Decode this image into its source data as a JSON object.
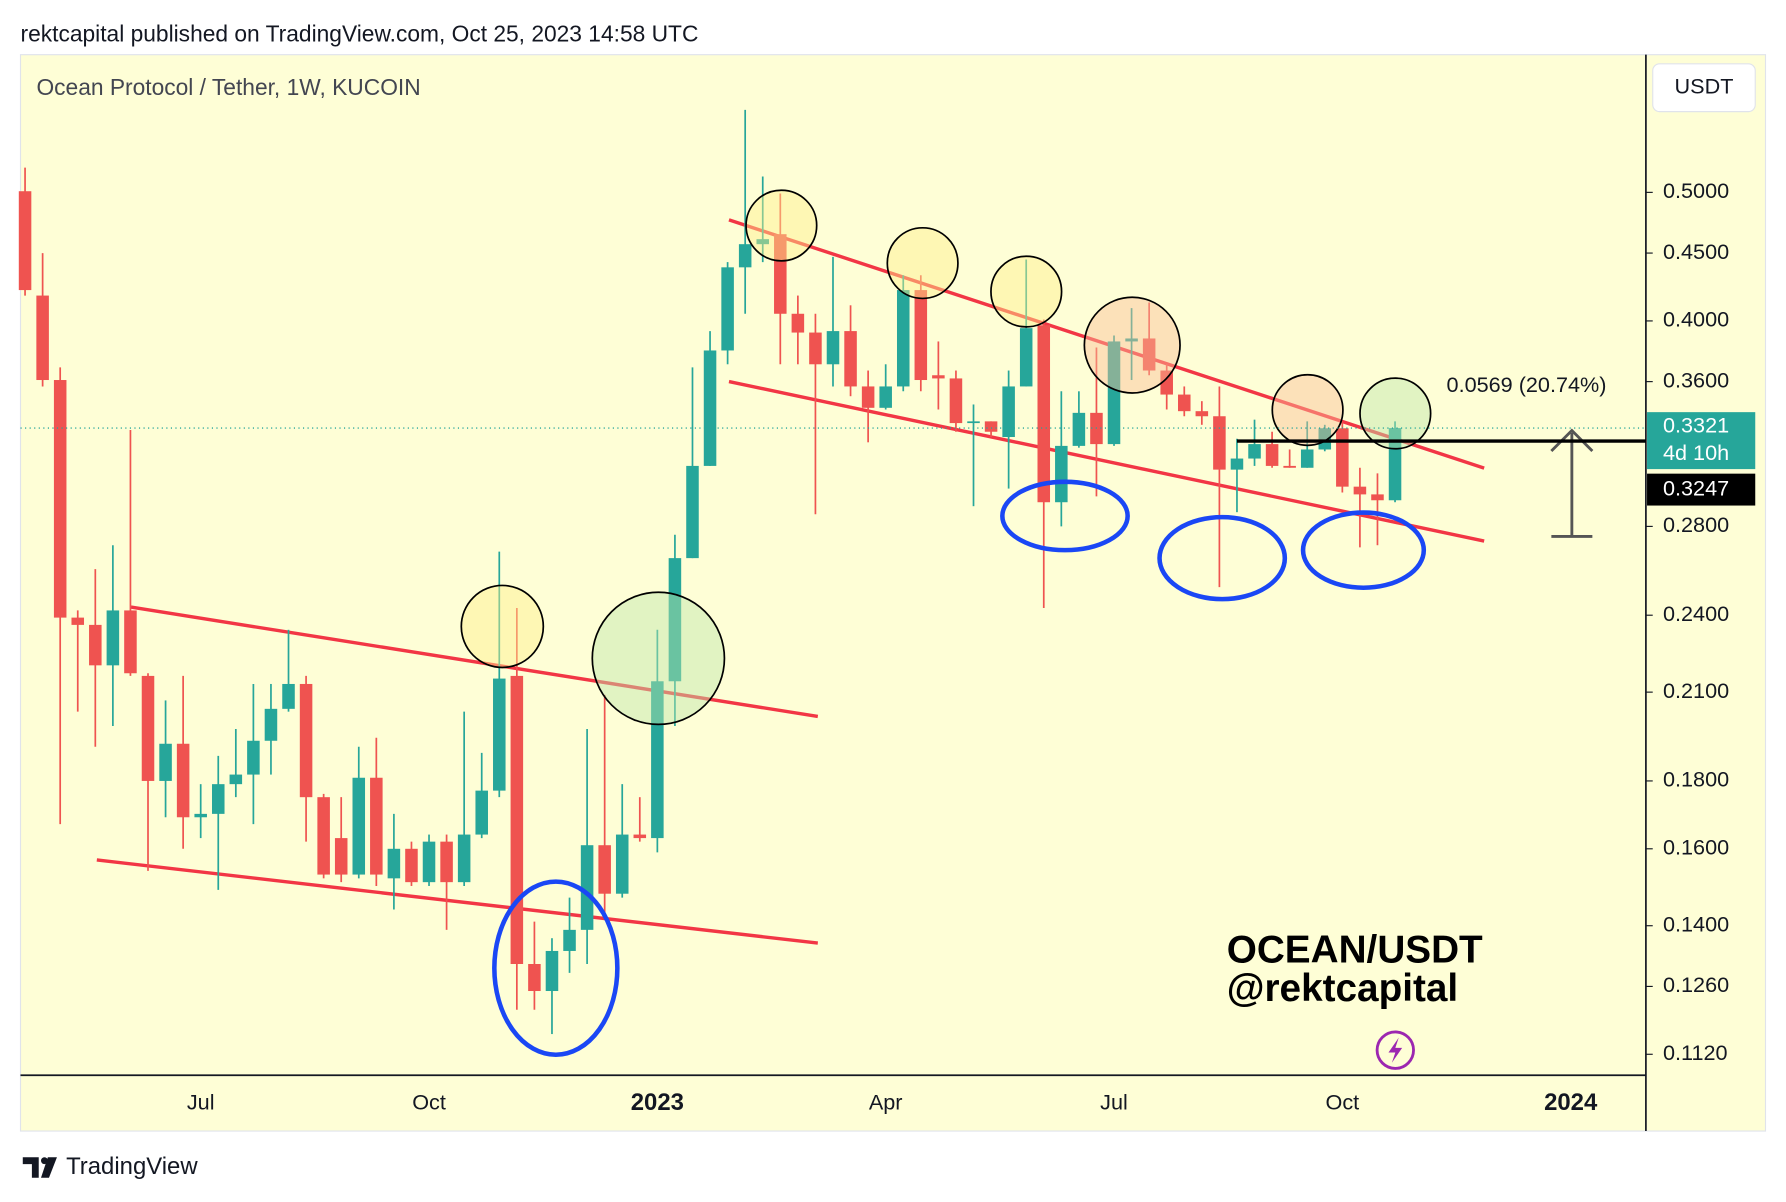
{
  "header": "rektcapital published on TradingView.com, Oct 25, 2023 14:58 UTC",
  "footer": "TradingView",
  "chart_data": {
    "type": "candlestick",
    "title": "Ocean Protocol / Tether, 1W, KUCOIN",
    "currency": "USDT",
    "log_scale": true,
    "grid": false,
    "up_color": "#26a69a",
    "down_color": "#ef5350",
    "ylim": [
      0.108,
      0.635
    ],
    "yticks": [
      {
        "value": 0.5,
        "label": "0.5000"
      },
      {
        "value": 0.45,
        "label": "0.4500"
      },
      {
        "value": 0.4,
        "label": "0.4000"
      },
      {
        "value": 0.36,
        "label": "0.3600"
      },
      {
        "value": 0.28,
        "label": "0.2800"
      },
      {
        "value": 0.24,
        "label": "0.2400"
      },
      {
        "value": 0.21,
        "label": "0.2100"
      },
      {
        "value": 0.18,
        "label": "0.1800"
      },
      {
        "value": 0.16,
        "label": "0.1600"
      },
      {
        "value": 0.14,
        "label": "0.1400"
      },
      {
        "value": 0.126,
        "label": "0.1260"
      },
      {
        "value": 0.112,
        "label": "0.1120"
      }
    ],
    "categories": [
      null,
      null,
      null,
      null,
      null,
      null,
      null,
      null,
      null,
      null,
      "Jul",
      null,
      null,
      null,
      null,
      null,
      null,
      null,
      null,
      null,
      null,
      null,
      null,
      "Oct",
      null,
      null,
      null,
      null,
      null,
      null,
      null,
      null,
      null,
      null,
      null,
      null,
      "2023",
      null,
      null,
      null,
      null,
      null,
      null,
      null,
      null,
      null,
      null,
      null,
      null,
      "Apr",
      null,
      null,
      null,
      null,
      null,
      null,
      null,
      null,
      null,
      null,
      null,
      null,
      "Jul",
      null,
      null,
      null,
      null,
      null,
      null,
      null,
      null,
      null,
      null,
      null,
      null,
      "Oct",
      null,
      null,
      null,
      null,
      null,
      null,
      null,
      null,
      null,
      null,
      null,
      null,
      "2024"
    ],
    "open": [
      0.501,
      0.418,
      0.361,
      0.239,
      0.236,
      0.22,
      0.242,
      0.216,
      0.18,
      0.192,
      0.169,
      0.17,
      0.179,
      0.182,
      0.193,
      0.204,
      0.213,
      0.175,
      0.163,
      0.153,
      0.181,
      0.152,
      0.16,
      0.151,
      0.162,
      0.151,
      0.164,
      0.177,
      0.216,
      0.131,
      0.125,
      0.134,
      0.139,
      0.161,
      0.148,
      0.164,
      0.163,
      0.214,
      0.265,
      0.311,
      0.38,
      0.439,
      0.457,
      0.465,
      0.405,
      0.392,
      0.371,
      0.393,
      0.357,
      0.344,
      0.357,
      0.422,
      0.364,
      0.362,
      0.335,
      0.336,
      0.327,
      0.357,
      0.397,
      0.292,
      0.322,
      0.341,
      0.323,
      0.386,
      0.388,
      0.367,
      0.352,
      0.342,
      0.339,
      0.309,
      0.315,
      0.323,
      0.311,
      0.31,
      0.32,
      0.332,
      0.3,
      0.296,
      0.293,
      null,
      null,
      null,
      null,
      null,
      null,
      null,
      null,
      null,
      null
    ],
    "high": [
      0.522,
      0.45,
      0.369,
      0.242,
      0.26,
      0.271,
      0.331,
      0.217,
      0.207,
      0.216,
      0.179,
      0.188,
      0.197,
      0.213,
      0.213,
      0.234,
      0.216,
      0.176,
      0.175,
      0.191,
      0.194,
      0.17,
      0.162,
      0.164,
      0.164,
      0.203,
      0.189,
      0.268,
      0.243,
      0.141,
      0.137,
      0.147,
      0.197,
      0.209,
      0.179,
      0.175,
      0.234,
      0.276,
      0.369,
      0.393,
      0.443,
      0.577,
      0.514,
      0.499,
      0.418,
      0.405,
      0.447,
      0.411,
      0.367,
      0.371,
      0.433,
      0.433,
      0.386,
      0.367,
      0.346,
      0.336,
      0.367,
      0.445,
      0.401,
      0.354,
      0.354,
      0.382,
      0.39,
      0.409,
      0.413,
      0.371,
      0.357,
      0.348,
      0.357,
      0.326,
      0.337,
      0.33,
      0.32,
      0.336,
      0.334,
      0.336,
      0.31,
      0.307,
      0.336,
      null,
      null,
      null,
      null,
      null,
      null,
      null,
      null,
      null,
      null
    ],
    "low": [
      0.418,
      0.357,
      0.167,
      0.203,
      0.191,
      0.198,
      0.216,
      0.154,
      0.169,
      0.16,
      0.163,
      0.149,
      0.175,
      0.167,
      0.182,
      0.203,
      0.162,
      0.152,
      0.151,
      0.152,
      0.15,
      0.144,
      0.15,
      0.15,
      0.139,
      0.15,
      0.163,
      0.175,
      0.121,
      0.121,
      0.116,
      0.129,
      0.131,
      0.142,
      0.147,
      0.162,
      0.159,
      0.198,
      0.265,
      0.311,
      0.371,
      0.405,
      0.443,
      0.371,
      0.371,
      0.286,
      0.357,
      0.351,
      0.324,
      0.343,
      0.354,
      0.354,
      0.343,
      0.33,
      0.29,
      0.327,
      0.299,
      0.357,
      0.243,
      0.28,
      0.321,
      0.295,
      0.322,
      0.361,
      0.364,
      0.343,
      0.339,
      0.334,
      0.252,
      0.287,
      0.311,
      0.31,
      0.31,
      0.31,
      0.319,
      0.297,
      0.27,
      0.271,
      0.292,
      null,
      null,
      null,
      null,
      null,
      null,
      null,
      null,
      null,
      null
    ],
    "close": [
      0.422,
      0.361,
      0.239,
      0.236,
      0.22,
      0.242,
      0.217,
      0.18,
      0.192,
      0.169,
      0.17,
      0.179,
      0.182,
      0.193,
      0.204,
      0.213,
      0.175,
      0.153,
      0.153,
      0.181,
      0.153,
      0.16,
      0.151,
      0.162,
      0.151,
      0.164,
      0.177,
      0.215,
      0.131,
      0.125,
      0.134,
      0.139,
      0.161,
      0.148,
      0.164,
      0.163,
      0.214,
      0.265,
      0.311,
      0.38,
      0.439,
      0.457,
      0.461,
      0.405,
      0.392,
      0.371,
      0.393,
      0.357,
      0.344,
      0.357,
      0.422,
      0.361,
      0.362,
      0.335,
      0.336,
      0.33,
      0.357,
      0.395,
      0.292,
      0.322,
      0.341,
      0.323,
      0.386,
      0.388,
      0.367,
      0.352,
      0.342,
      0.339,
      0.309,
      0.315,
      0.323,
      0.311,
      0.31,
      0.32,
      0.332,
      0.3,
      0.296,
      0.293,
      0.3321,
      null,
      null,
      null,
      null,
      null,
      null,
      null,
      null,
      null,
      null
    ],
    "last_price": 0.3321,
    "countdown": "4d 10h",
    "level_price": 0.3247,
    "measure_label": "0.0569 (20.74%)",
    "watermark": [
      "OCEAN/USDT",
      "@rektcapital"
    ]
  }
}
